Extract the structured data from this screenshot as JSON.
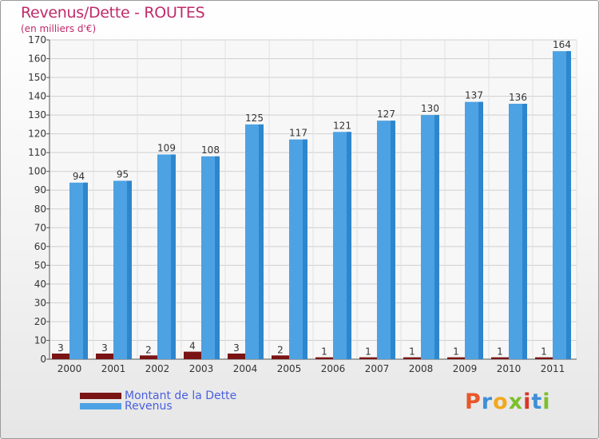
{
  "header": {
    "title": "Revenus/Dette - ROUTES",
    "subtitle": "(en milliers d'€)"
  },
  "chart_data": {
    "type": "bar",
    "title": "Revenus/Dette - ROUTES",
    "ylabel": "(en milliers d'€)",
    "xlabel": "",
    "ylim": [
      0,
      170
    ],
    "yticks": [
      0,
      10,
      20,
      30,
      40,
      50,
      60,
      70,
      80,
      90,
      100,
      110,
      120,
      130,
      140,
      150,
      160,
      170
    ],
    "grid": true,
    "categories": [
      "2000",
      "2001",
      "2002",
      "2003",
      "2004",
      "2005",
      "2006",
      "2007",
      "2008",
      "2009",
      "2010",
      "2011"
    ],
    "series": [
      {
        "name": "Montant de la Dette",
        "color": "#7a1414",
        "values": [
          3,
          3,
          2,
          4,
          3,
          2,
          1,
          1,
          1,
          1,
          1,
          1
        ]
      },
      {
        "name": "Revenus",
        "color": "#4da2e3",
        "values": [
          94,
          95,
          109,
          108,
          125,
          117,
          121,
          127,
          130,
          137,
          136,
          164
        ]
      }
    ]
  },
  "legend": {
    "items": [
      {
        "label": "Montant de la Dette",
        "color": "#7a1414"
      },
      {
        "label": "Revenus",
        "color": "#4da2e3"
      }
    ]
  },
  "logo": {
    "letters": [
      "P",
      "r",
      "o",
      "x",
      "i",
      "t",
      "i"
    ],
    "colors": [
      "#e8572a",
      "#3f8fd8",
      "#f2a81d",
      "#7cbf2c",
      "#d8352a",
      "#3f8fd8",
      "#7cbf2c"
    ]
  }
}
